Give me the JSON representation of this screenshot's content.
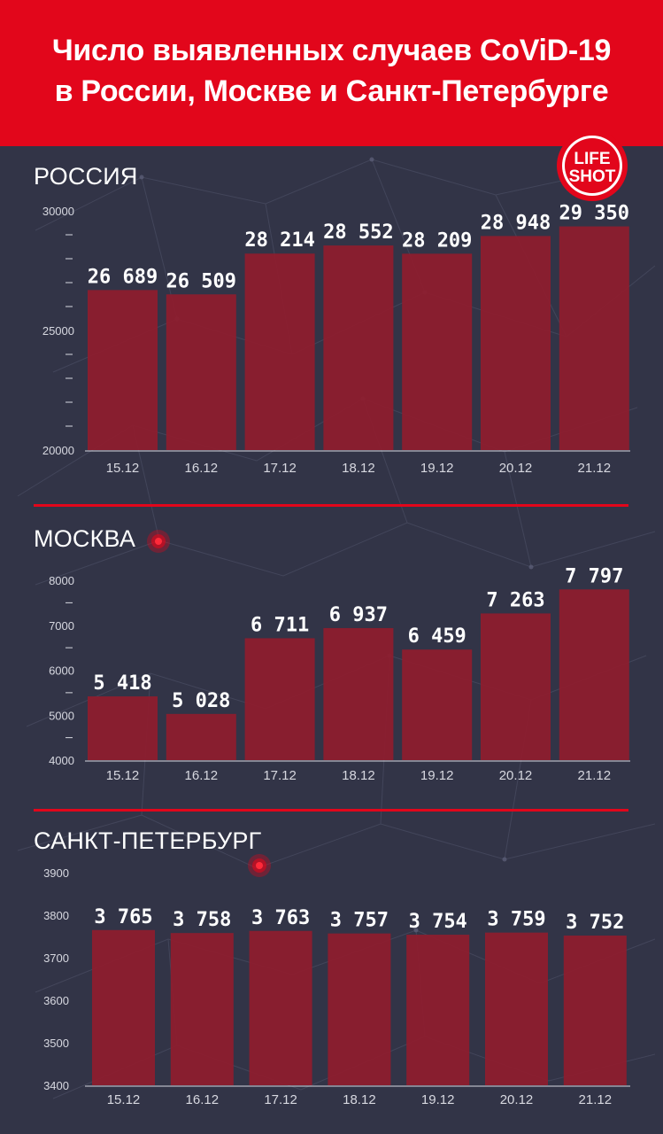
{
  "header": {
    "title_line1": "Число выявленных случаев CoViD-19",
    "title_line2": "в России, Москве и Санкт-Петербурге"
  },
  "logo": {
    "line1": "LIFE",
    "line2": "SHOT"
  },
  "colors": {
    "header_red": "#e2061b",
    "background": "#323447",
    "bar": "#8d1d2e",
    "text": "#ffffff",
    "axis_text": "#d7d8e0"
  },
  "chart_data": [
    {
      "type": "bar",
      "title": "РОССИЯ",
      "categories": [
        "15.12",
        "16.12",
        "17.12",
        "18.12",
        "19.12",
        "20.12",
        "21.12"
      ],
      "values": [
        26689,
        26509,
        28214,
        28552,
        28209,
        28948,
        29350
      ],
      "labels": [
        "26 689",
        "26 509",
        "28 214",
        "28 552",
        "28 209",
        "28 948",
        "29 350"
      ],
      "yticks": [
        "30000",
        "25000",
        "20000"
      ],
      "ylim": [
        20000,
        30000
      ],
      "grid": false
    },
    {
      "type": "bar",
      "title": "МОСКВА",
      "categories": [
        "15.12",
        "16.12",
        "17.12",
        "18.12",
        "19.12",
        "20.12",
        "21.12"
      ],
      "values": [
        5418,
        5028,
        6711,
        6937,
        6459,
        7263,
        7797
      ],
      "labels": [
        "5 418",
        "5 028",
        "6 711",
        "6 937",
        "6 459",
        "7 263",
        "7 797"
      ],
      "yticks": [
        "8000",
        "7000",
        "6000",
        "5000",
        "4000"
      ],
      "ylim": [
        4000,
        8000
      ],
      "grid": false
    },
    {
      "type": "bar",
      "title": "САНКТ-ПЕТЕРБУРГ",
      "categories": [
        "15.12",
        "16.12",
        "17.12",
        "18.12",
        "19.12",
        "20.12",
        "21.12"
      ],
      "values": [
        3765,
        3758,
        3763,
        3757,
        3754,
        3759,
        3752
      ],
      "labels": [
        "3 765",
        "3 758",
        "3 763",
        "3 757",
        "3 754",
        "3 759",
        "3 752"
      ],
      "yticks": [
        "3900",
        "3800",
        "3700",
        "3600",
        "3500",
        "3400"
      ],
      "ylim": [
        3400,
        3900
      ],
      "grid": false
    }
  ]
}
